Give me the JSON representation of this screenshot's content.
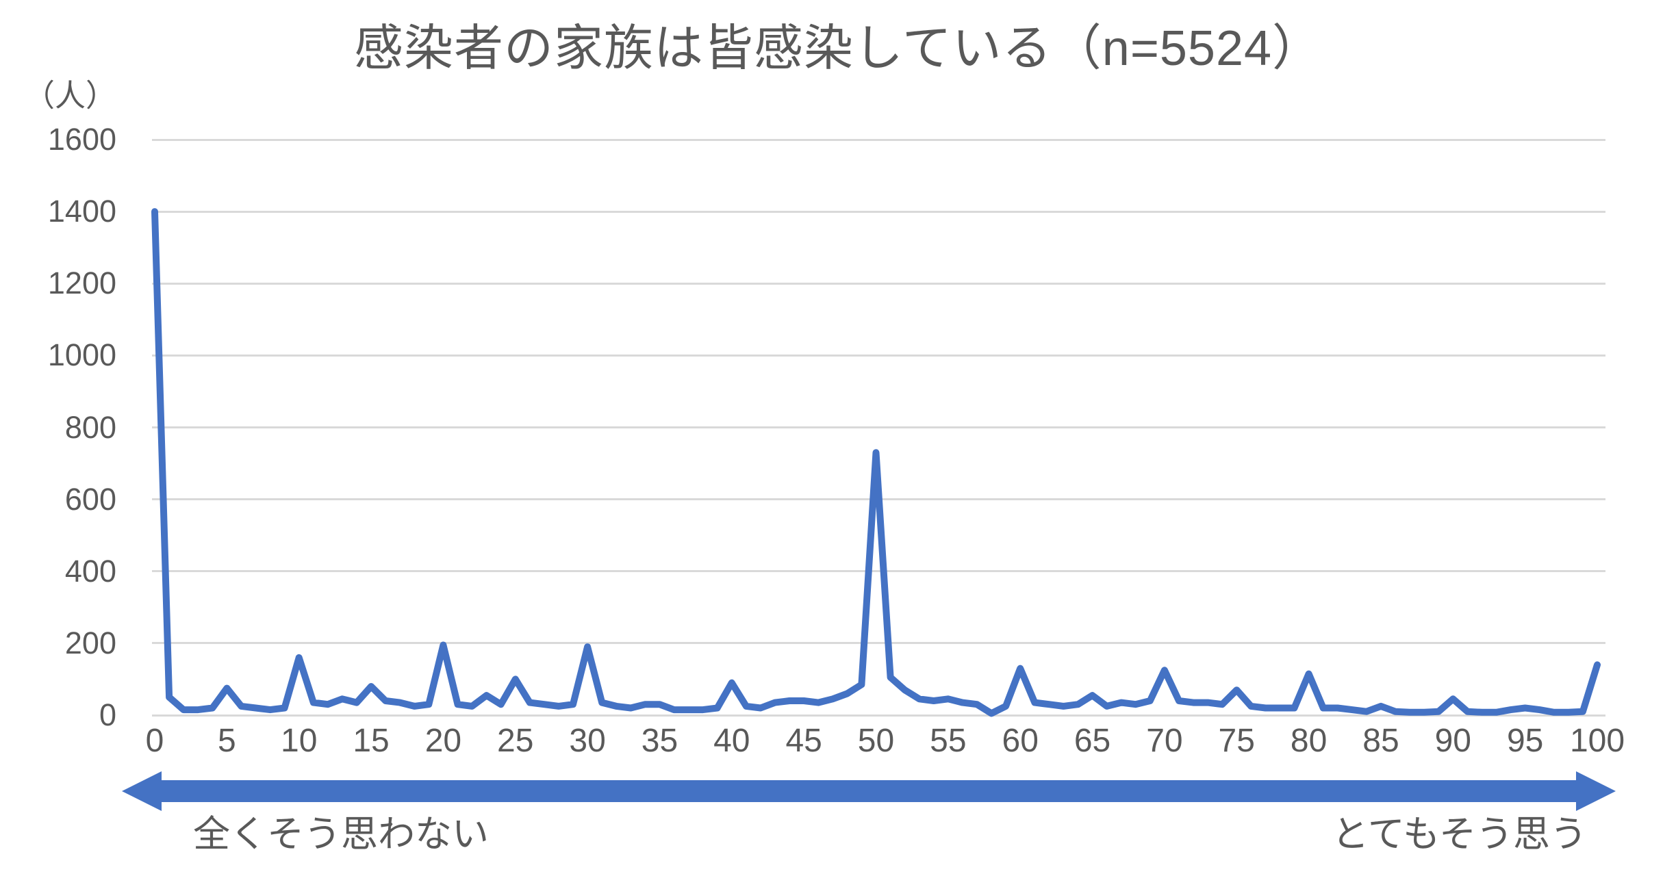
{
  "chart_data": {
    "type": "line",
    "title": "感染者の家族は皆感染している（n=5524）",
    "ylabel": "（人）",
    "xlabel_left": "全くそう思わない",
    "xlabel_right": "とてもそう思う",
    "ylim": [
      0,
      1600
    ],
    "xlim": [
      0,
      100
    ],
    "y_ticks": [
      0,
      200,
      400,
      600,
      800,
      1000,
      1200,
      1400,
      1600
    ],
    "x_ticks": [
      0,
      5,
      10,
      15,
      20,
      25,
      30,
      35,
      40,
      45,
      50,
      55,
      60,
      65,
      70,
      75,
      80,
      85,
      90,
      95,
      100
    ],
    "grid": true,
    "legend": false,
    "x": [
      0,
      1,
      2,
      3,
      4,
      5,
      6,
      7,
      8,
      9,
      10,
      11,
      12,
      13,
      14,
      15,
      16,
      17,
      18,
      19,
      20,
      21,
      22,
      23,
      24,
      25,
      26,
      27,
      28,
      29,
      30,
      31,
      32,
      33,
      34,
      35,
      36,
      37,
      38,
      39,
      40,
      41,
      42,
      43,
      44,
      45,
      46,
      47,
      48,
      49,
      50,
      51,
      52,
      53,
      54,
      55,
      56,
      57,
      58,
      59,
      60,
      61,
      62,
      63,
      64,
      65,
      66,
      67,
      68,
      69,
      70,
      71,
      72,
      73,
      74,
      75,
      76,
      77,
      78,
      79,
      80,
      81,
      82,
      83,
      84,
      85,
      86,
      87,
      88,
      89,
      90,
      91,
      92,
      93,
      94,
      95,
      96,
      97,
      98,
      99,
      100
    ],
    "values": [
      1400,
      50,
      15,
      15,
      20,
      75,
      25,
      20,
      15,
      20,
      160,
      35,
      30,
      45,
      35,
      80,
      40,
      35,
      25,
      30,
      195,
      30,
      25,
      55,
      30,
      100,
      35,
      30,
      25,
      30,
      190,
      35,
      25,
      20,
      30,
      30,
      15,
      15,
      15,
      20,
      90,
      25,
      20,
      35,
      40,
      40,
      35,
      45,
      60,
      85,
      730,
      105,
      70,
      45,
      40,
      45,
      35,
      30,
      5,
      25,
      130,
      35,
      30,
      25,
      30,
      55,
      25,
      35,
      30,
      40,
      125,
      40,
      35,
      35,
      30,
      70,
      25,
      20,
      20,
      20,
      115,
      20,
      20,
      15,
      10,
      25,
      10,
      8,
      8,
      10,
      45,
      10,
      8,
      8,
      15,
      20,
      15,
      8,
      8,
      10,
      140
    ]
  },
  "colors": {
    "line": "#4472C4",
    "arrow": "#4472C4",
    "gridline": "#D9D9D9",
    "text": "#595959"
  }
}
